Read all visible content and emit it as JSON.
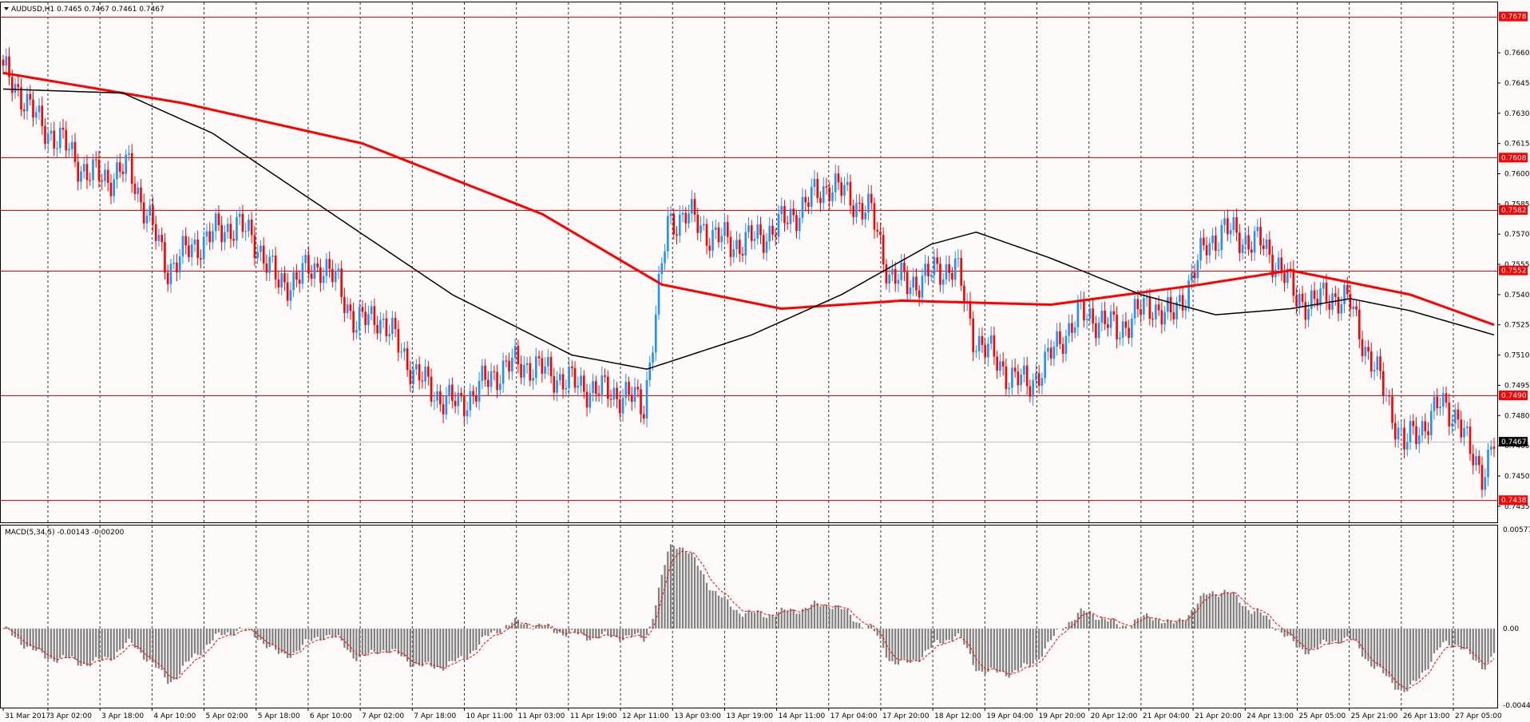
{
  "chart_data": [
    {
      "type": "candlestick",
      "title": "AUDUSD,H1",
      "ohlc_readout": "0.7465 0.7467 0.7461 0.7467",
      "ylim": [
        0.7427,
        0.7685
      ],
      "price_ticks": [
        "0.7660",
        "0.7645",
        "0.7630",
        "0.7615",
        "0.7600",
        "0.7585",
        "0.7570",
        "0.7555",
        "0.7540",
        "0.7525",
        "0.7510",
        "0.7495",
        "0.7480",
        "0.7465",
        "0.7450",
        "0.7435"
      ],
      "time_labels": [
        "31 Mar 2017",
        "3 Apr 02:00",
        "3 Apr 18:00",
        "4 Apr 10:00",
        "5 Apr 02:00",
        "5 Apr 18:00",
        "6 Apr 10:00",
        "7 Apr 02:00",
        "7 Apr 18:00",
        "10 Apr 11:00",
        "11 Apr 03:00",
        "11 Apr 19:00",
        "12 Apr 11:00",
        "13 Apr 03:00",
        "13 Apr 19:00",
        "14 Apr 11:00",
        "17 Apr 04:00",
        "17 Apr 20:00",
        "18 Apr 12:00",
        "19 Apr 04:00",
        "19 Apr 20:00",
        "20 Apr 12:00",
        "21 Apr 04:00",
        "21 Apr 20:00",
        "24 Apr 13:00",
        "25 Apr 05:00",
        "25 Apr 21:00",
        "26 Apr 13:00",
        "27 Apr 05:00"
      ],
      "horizontal_levels": [
        {
          "value": 0.7678,
          "label": "0.7678",
          "color": "#ff0000"
        },
        {
          "value": 0.7608,
          "label": "0.7608",
          "color": "#ff0000"
        },
        {
          "value": 0.7582,
          "label": "0.7582",
          "color": "#ff0000"
        },
        {
          "value": 0.7552,
          "label": "0.7552",
          "color": "#ff0000"
        },
        {
          "value": 0.749,
          "label": "0.7490",
          "color": "#ff0000"
        },
        {
          "value": 0.7438,
          "label": "0.7438",
          "color": "#ff0000"
        }
      ],
      "current_price": {
        "value": 0.7467,
        "label": "0.7467"
      },
      "anchors": [
        [
          0,
          0.765
        ],
        [
          6,
          0.764
        ],
        [
          12,
          0.7625
        ],
        [
          20,
          0.7615
        ],
        [
          28,
          0.76
        ],
        [
          35,
          0.7598
        ],
        [
          42,
          0.7603
        ],
        [
          48,
          0.758
        ],
        [
          55,
          0.7553
        ],
        [
          62,
          0.7562
        ],
        [
          70,
          0.757
        ],
        [
          78,
          0.7575
        ],
        [
          85,
          0.7565
        ],
        [
          92,
          0.7545
        ],
        [
          98,
          0.7548
        ],
        [
          106,
          0.7555
        ],
        [
          112,
          0.7545
        ],
        [
          118,
          0.7525
        ],
        [
          125,
          0.753
        ],
        [
          132,
          0.7515
        ],
        [
          138,
          0.75
        ],
        [
          145,
          0.749
        ],
        [
          152,
          0.7485
        ],
        [
          160,
          0.7495
        ],
        [
          168,
          0.7505
        ],
        [
          176,
          0.7505
        ],
        [
          184,
          0.75
        ],
        [
          192,
          0.7495
        ],
        [
          200,
          0.7492
        ],
        [
          208,
          0.749
        ],
        [
          214,
          0.7485
        ],
        [
          218,
          0.753
        ],
        [
          222,
          0.7575
        ],
        [
          228,
          0.758
        ],
        [
          236,
          0.757
        ],
        [
          244,
          0.7565
        ],
        [
          252,
          0.7568
        ],
        [
          260,
          0.7575
        ],
        [
          268,
          0.7585
        ],
        [
          276,
          0.7595
        ],
        [
          283,
          0.7588
        ],
        [
          290,
          0.758
        ],
        [
          296,
          0.755
        ],
        [
          302,
          0.7545
        ],
        [
          310,
          0.755
        ],
        [
          318,
          0.7555
        ],
        [
          324,
          0.752
        ],
        [
          330,
          0.751
        ],
        [
          336,
          0.75
        ],
        [
          342,
          0.7495
        ],
        [
          348,
          0.7505
        ],
        [
          354,
          0.752
        ],
        [
          360,
          0.753
        ],
        [
          366,
          0.7528
        ],
        [
          372,
          0.7522
        ],
        [
          378,
          0.753
        ],
        [
          384,
          0.7535
        ],
        [
          390,
          0.7528
        ],
        [
          396,
          0.7545
        ],
        [
          402,
          0.7565
        ],
        [
          408,
          0.7572
        ],
        [
          414,
          0.7568
        ],
        [
          420,
          0.7565
        ],
        [
          426,
          0.7555
        ],
        [
          432,
          0.7538
        ],
        [
          438,
          0.7536
        ],
        [
          444,
          0.754
        ],
        [
          450,
          0.7535
        ],
        [
          456,
          0.751
        ],
        [
          462,
          0.749
        ],
        [
          468,
          0.7465
        ],
        [
          474,
          0.7475
        ],
        [
          480,
          0.7485
        ],
        [
          486,
          0.748
        ],
        [
          490,
          0.746
        ],
        [
          494,
          0.7452
        ],
        [
          498,
          0.7467
        ]
      ],
      "moving_averages": [
        {
          "color": "#ff0000",
          "points": [
            [
              0,
              0.765
            ],
            [
              60,
              0.7635
            ],
            [
              120,
              0.7615
            ],
            [
              180,
              0.758
            ],
            [
              220,
              0.7545
            ],
            [
              260,
              0.7533
            ],
            [
              300,
              0.7537
            ],
            [
              350,
              0.7535
            ],
            [
              400,
              0.7545
            ],
            [
              430,
              0.7552
            ],
            [
              470,
              0.754
            ],
            [
              498,
              0.7525
            ]
          ]
        },
        {
          "color": "#000000",
          "points": [
            [
              0,
              0.7642
            ],
            [
              40,
              0.764
            ],
            [
              70,
              0.762
            ],
            [
              110,
              0.758
            ],
            [
              150,
              0.754
            ],
            [
              190,
              0.751
            ],
            [
              215,
              0.7503
            ],
            [
              250,
              0.752
            ],
            [
              280,
              0.754
            ],
            [
              310,
              0.7565
            ],
            [
              325,
              0.7571
            ],
            [
              350,
              0.7558
            ],
            [
              380,
              0.754
            ],
            [
              405,
              0.753
            ],
            [
              430,
              0.7533
            ],
            [
              450,
              0.7538
            ],
            [
              470,
              0.7532
            ],
            [
              498,
              0.752
            ]
          ]
        }
      ]
    },
    {
      "type": "histogram",
      "title": "MACD(5,34,5)",
      "readout": "-0.00143 -0.00200",
      "ylim": [
        -0.0046,
        0.006
      ],
      "y_ticks": [
        "0.00577",
        "0.00",
        "-0.00445"
      ],
      "series": [
        {
          "name": "MACD",
          "color": "#808080"
        },
        {
          "name": "Signal",
          "color": "#ff0000"
        }
      ]
    }
  ]
}
